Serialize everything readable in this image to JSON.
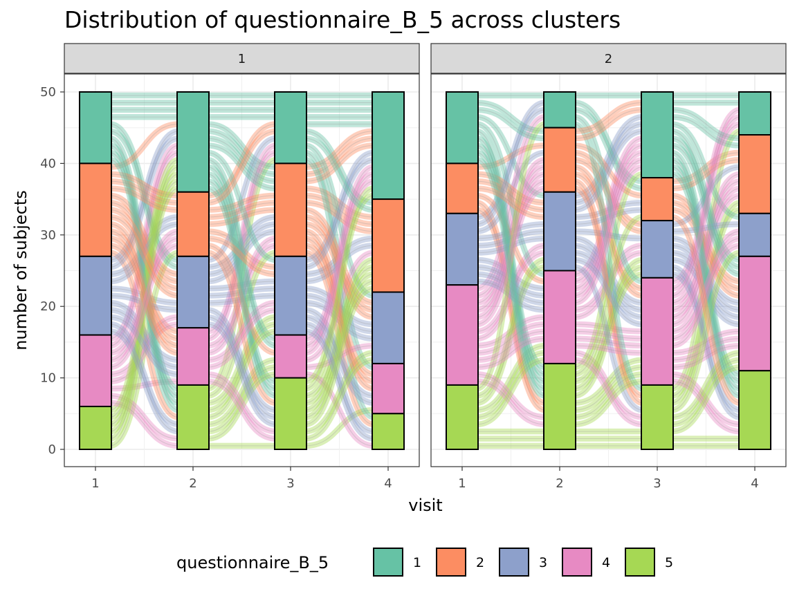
{
  "chart_data": {
    "type": "alluvial",
    "title": "Distribution of questionnaire_B_5 across clusters",
    "xlabel": "visit",
    "ylabel": "number of subjects",
    "ylim": [
      0,
      52.5
    ],
    "y_ticks": [
      0,
      10,
      20,
      30,
      40,
      50
    ],
    "x_categories": [
      "1",
      "2",
      "3",
      "4"
    ],
    "grid": true,
    "legend": {
      "title": "questionnaire_B_5",
      "position": "bottom",
      "levels": [
        "1",
        "2",
        "3",
        "4",
        "5"
      ],
      "colors": [
        "#66c2a5",
        "#fc8d62",
        "#8da0cb",
        "#e78ac3",
        "#a6d854"
      ]
    },
    "panels": [
      {
        "strip": "1",
        "counts_by_visit": [
          {
            "visit": "1",
            "values": {
              "1": 10,
              "2": 13,
              "3": 11,
              "4": 10,
              "5": 6
            }
          },
          {
            "visit": "2",
            "values": {
              "1": 14,
              "2": 9,
              "3": 10,
              "4": 8,
              "5": 9
            }
          },
          {
            "visit": "3",
            "values": {
              "1": 10,
              "2": 13,
              "3": 11,
              "4": 6,
              "5": 10
            }
          },
          {
            "visit": "4",
            "values": {
              "1": 15,
              "2": 13,
              "3": 10,
              "4": 7,
              "5": 5
            }
          }
        ]
      },
      {
        "strip": "2",
        "counts_by_visit": [
          {
            "visit": "1",
            "values": {
              "1": 10,
              "2": 7,
              "3": 10,
              "4": 14,
              "5": 9
            }
          },
          {
            "visit": "2",
            "values": {
              "1": 5,
              "2": 9,
              "3": 11,
              "4": 13,
              "5": 12
            }
          },
          {
            "visit": "3",
            "values": {
              "1": 12,
              "2": 6,
              "3": 8,
              "4": 15,
              "5": 9
            }
          },
          {
            "visit": "4",
            "values": {
              "1": 6,
              "2": 11,
              "3": 6,
              "4": 16,
              "5": 11
            }
          }
        ]
      }
    ]
  }
}
